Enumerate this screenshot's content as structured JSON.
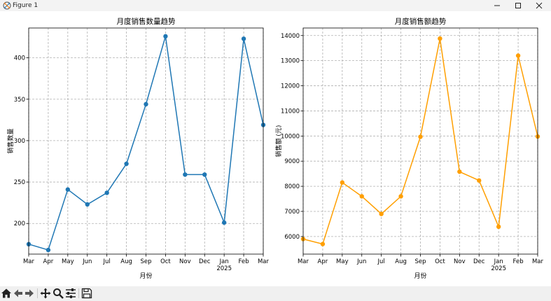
{
  "window": {
    "title": "Figure 1"
  },
  "toolbar": {
    "buttons": [
      "home-icon",
      "back-arrow-icon",
      "forward-arrow-icon",
      "pan-icon",
      "zoom-icon",
      "configure-subplots-icon",
      "save-icon"
    ]
  },
  "chart_data": [
    {
      "type": "line",
      "title": "月度销售数量趋势",
      "xlabel": "月份",
      "ylabel": "销售数量",
      "x": [
        "2024-03",
        "2024-04",
        "2024-05",
        "2024-06",
        "2024-07",
        "2024-08",
        "2024-09",
        "2024-10",
        "2024-11",
        "2024-12",
        "2025-01",
        "2025-02",
        "2025-03"
      ],
      "x_ticklabels": [
        "Mar",
        "Apr",
        "May",
        "Jun",
        "Jul",
        "Aug",
        "Sep",
        "Oct",
        "Nov",
        "Dec",
        "Jan",
        "Feb",
        "Mar"
      ],
      "year_label": "2025",
      "series": [
        {
          "values": [
            175,
            168,
            241,
            223,
            237,
            272,
            344,
            426,
            259,
            259,
            201,
            423,
            319
          ],
          "color": "#1f77b4"
        }
      ],
      "ylim": [
        163,
        436
      ],
      "yticks": [
        200,
        250,
        300,
        350,
        400
      ],
      "grid": true
    },
    {
      "type": "line",
      "title": "月度销售额趋势",
      "xlabel": "月份",
      "ylabel": "销售额 (元)",
      "x": [
        "2024-03",
        "2024-04",
        "2024-05",
        "2024-06",
        "2024-07",
        "2024-08",
        "2024-09",
        "2024-10",
        "2024-11",
        "2024-12",
        "2025-01",
        "2025-02",
        "2025-03"
      ],
      "x_ticklabels": [
        "Mar",
        "Apr",
        "May",
        "Jun",
        "Jul",
        "Aug",
        "Sep",
        "Oct",
        "Nov",
        "Dec",
        "Jan",
        "Feb",
        "Mar"
      ],
      "year_label": "2025",
      "series": [
        {
          "values": [
            5900,
            5700,
            8150,
            7600,
            6900,
            7600,
            9970,
            13880,
            8580,
            8230,
            6390,
            13200,
            9980
          ],
          "color": "#ff9f00"
        }
      ],
      "ylim": [
        5300,
        14300
      ],
      "yticks": [
        6000,
        7000,
        8000,
        9000,
        10000,
        11000,
        12000,
        13000,
        14000
      ],
      "grid": true
    }
  ]
}
